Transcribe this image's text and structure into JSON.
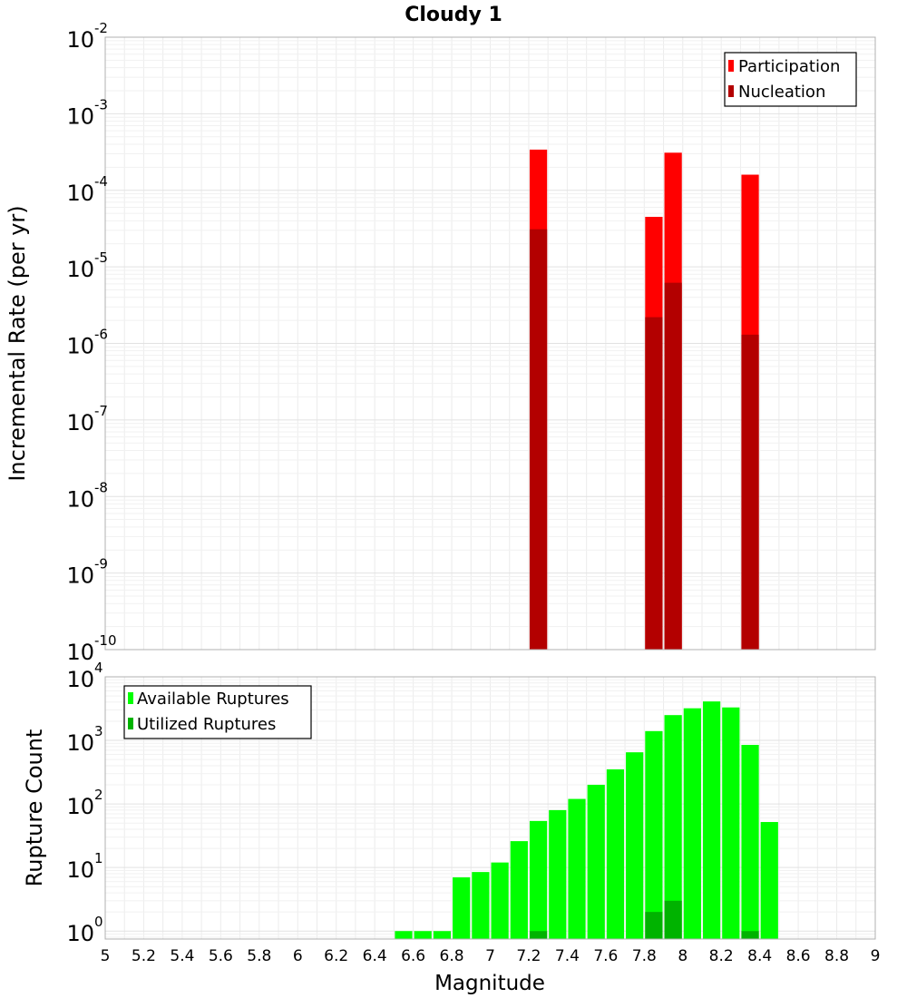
{
  "chart_data": [
    {
      "type": "bar",
      "title": "Cloudy 1",
      "xlabel": "Magnitude",
      "ylabel": "Incremental Rate (per yr)",
      "yscale": "log",
      "ylim": [
        1e-10,
        0.01
      ],
      "xlim": [
        5,
        9
      ],
      "ytick_exponents": [
        -10,
        -9,
        -8,
        -7,
        -6,
        -5,
        -4,
        -3,
        -2
      ],
      "grid": true,
      "legend_position": "top-right",
      "bin_width": 0.1,
      "series": [
        {
          "name": "Participation",
          "color": "#ff0000",
          "x": [
            7.25,
            7.85,
            7.95,
            8.35
          ],
          "values": [
            0.00034,
            4.5e-05,
            0.00031,
            0.00016
          ]
        },
        {
          "name": "Nucleation",
          "color": "#b30000",
          "x": [
            7.25,
            7.85,
            7.95,
            8.35
          ],
          "values": [
            3.1e-05,
            2.2e-06,
            6.2e-06,
            1.3e-06
          ]
        }
      ]
    },
    {
      "type": "bar",
      "title": "",
      "xlabel": "Magnitude",
      "ylabel": "Rupture Count",
      "yscale": "log",
      "ylim": [
        0.75,
        10000
      ],
      "xlim": [
        5,
        9
      ],
      "ytick_exponents": [
        0,
        1,
        2,
        3,
        4
      ],
      "xticks": [
        "5",
        "5.2",
        "5.4",
        "5.6",
        "5.8",
        "6",
        "6.2",
        "6.4",
        "6.6",
        "6.8",
        "7",
        "7.2",
        "7.4",
        "7.6",
        "7.8",
        "8",
        "8.2",
        "8.4",
        "8.6",
        "8.8",
        "9"
      ],
      "grid": true,
      "legend_position": "top-left",
      "bin_width": 0.1,
      "series": [
        {
          "name": "Available Ruptures",
          "color": "#00ff00",
          "x": [
            6.55,
            6.65,
            6.75,
            6.85,
            6.95,
            7.05,
            7.15,
            7.25,
            7.35,
            7.45,
            7.55,
            7.65,
            7.75,
            7.85,
            7.95,
            8.05,
            8.15,
            8.25,
            8.35,
            8.45
          ],
          "values": [
            1,
            1,
            1,
            7,
            8.5,
            12,
            26,
            54,
            80,
            120,
            200,
            350,
            650,
            1400,
            2500,
            3200,
            4100,
            3300,
            850,
            52
          ]
        },
        {
          "name": "Utilized Ruptures",
          "color": "#00b300",
          "x": [
            7.25,
            7.85,
            7.95,
            8.35
          ],
          "values": [
            1,
            2,
            3,
            1
          ]
        }
      ]
    }
  ]
}
